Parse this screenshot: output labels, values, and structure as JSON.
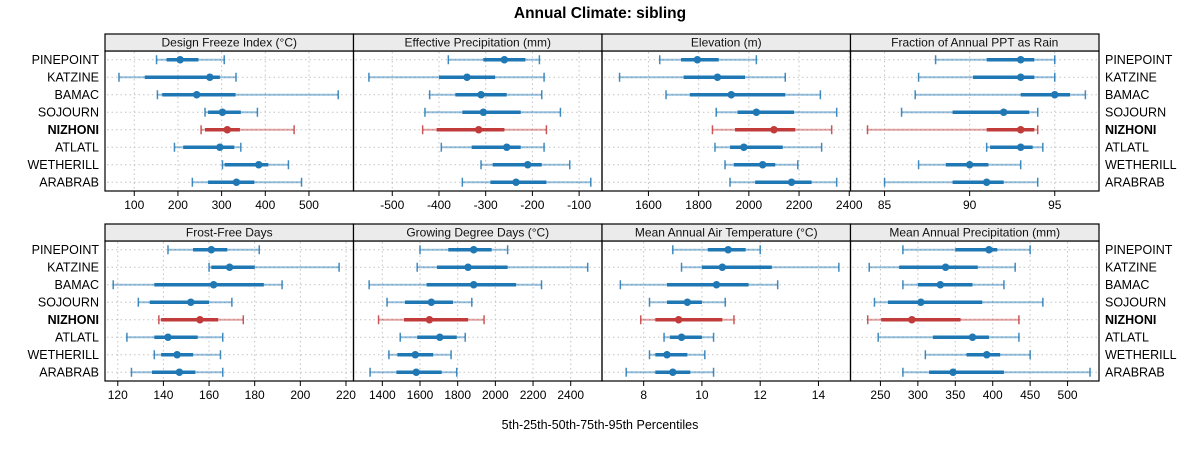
{
  "title": "Annual Climate: sibling",
  "caption": "5th-25th-50th-75th-95th Percentiles",
  "colors": {
    "series_blue": "#1f77b4",
    "highlight_red": "#c13b3b",
    "panel_header_bg": "#ebebeb",
    "panel_border": "#000000",
    "gridline": "#c3c3c3",
    "text": "#000000"
  },
  "chart_data": {
    "type": "scatter",
    "subtype": "horizontal_percentile_intervals",
    "title": "Annual Climate: sibling",
    "xlabel": "5th-25th-50th-75th-95th Percentiles",
    "grid": true,
    "percentiles": [
      5,
      25,
      50,
      75,
      95
    ],
    "sites": [
      "PINEPOINT",
      "KATZINE",
      "BAMAC",
      "SOJOURN",
      "NIZHONI",
      "ATLATL",
      "WETHERILL",
      "ARABRAB"
    ],
    "highlight_site": "NIZHONI",
    "panels": [
      {
        "title": "Design Freeze Index (°C)",
        "ticks": [
          100,
          200,
          300,
          400,
          500
        ],
        "xlim": [
          33,
          602
        ],
        "values": [
          [
            151,
            174,
            205,
            247,
            306
          ],
          [
            65,
            124,
            273,
            296,
            333
          ],
          [
            153,
            164,
            243,
            332,
            567
          ],
          [
            262,
            269,
            302,
            344,
            382
          ],
          [
            253,
            262,
            313,
            342,
            466
          ],
          [
            192,
            212,
            296,
            329,
            344
          ],
          [
            302,
            307,
            385,
            407,
            453
          ],
          [
            233,
            269,
            334,
            375,
            483
          ]
        ]
      },
      {
        "title": "Effective Precipitation (mm)",
        "ticks": [
          -500,
          -400,
          -300,
          -200,
          -100
        ],
        "xlim": [
          -583,
          -51
        ],
        "values": [
          [
            -380,
            -305,
            -260,
            -215,
            -185
          ],
          [
            -550,
            -400,
            -340,
            -280,
            -175
          ],
          [
            -420,
            -365,
            -310,
            -255,
            -180
          ],
          [
            -430,
            -350,
            -305,
            -225,
            -140
          ],
          [
            -435,
            -405,
            -315,
            -260,
            -170
          ],
          [
            -395,
            -330,
            -255,
            -225,
            -175
          ],
          [
            -310,
            -285,
            -210,
            -180,
            -120
          ],
          [
            -350,
            -290,
            -235,
            -170,
            -75
          ]
        ]
      },
      {
        "title": "Elevation (m)",
        "ticks": [
          1600,
          1800,
          2000,
          2200,
          2400
        ],
        "xlim": [
          1415,
          2405
        ],
        "values": [
          [
            1645,
            1730,
            1795,
            1880,
            2030
          ],
          [
            1485,
            1740,
            1875,
            1985,
            2145
          ],
          [
            1670,
            1765,
            1930,
            2145,
            2285
          ],
          [
            1870,
            1955,
            2030,
            2180,
            2350
          ],
          [
            1855,
            1945,
            2100,
            2185,
            2330
          ],
          [
            1865,
            1925,
            1980,
            2135,
            2290
          ],
          [
            1905,
            1940,
            2055,
            2105,
            2195
          ],
          [
            1925,
            2025,
            2170,
            2250,
            2350
          ]
        ]
      },
      {
        "title": "Fraction of Annual PPT as Rain",
        "ticks": [
          85,
          90,
          95
        ],
        "xlim": [
          83,
          97.6
        ],
        "values": [
          [
            88,
            91,
            93,
            93.8,
            95
          ],
          [
            87,
            90.2,
            93,
            93.8,
            95
          ],
          [
            86.8,
            93,
            95,
            95.9,
            96.8
          ],
          [
            86,
            89,
            92,
            93.5,
            94
          ],
          [
            84,
            91,
            93,
            93.8,
            94
          ],
          [
            91,
            91.2,
            93,
            93.7,
            94.3
          ],
          [
            87,
            88.6,
            90,
            91.1,
            93
          ],
          [
            85,
            89,
            91,
            92,
            94
          ]
        ]
      },
      {
        "title": "Frost-Free Days",
        "ticks": [
          120,
          140,
          160,
          180,
          200,
          220
        ],
        "xlim": [
          114.4,
          223.3
        ],
        "values": [
          [
            142,
            153,
            161,
            168,
            182
          ],
          [
            160,
            161,
            169,
            180,
            217
          ],
          [
            118,
            136,
            162,
            184,
            192
          ],
          [
            129,
            134,
            152,
            160,
            170
          ],
          [
            138,
            139,
            156,
            164,
            175
          ],
          [
            124,
            136,
            142,
            155,
            166
          ],
          [
            136,
            139,
            146,
            153,
            165
          ],
          [
            126,
            135,
            147,
            154,
            166
          ]
        ]
      },
      {
        "title": "Growing Degree Days (°C)",
        "ticks": [
          1400,
          1600,
          1800,
          2000,
          2200,
          2400
        ],
        "xlim": [
          1247,
          2566
        ],
        "values": [
          [
            1600,
            1750,
            1885,
            1980,
            2065
          ],
          [
            1585,
            1690,
            1855,
            2065,
            2490
          ],
          [
            1330,
            1635,
            1885,
            2110,
            2245
          ],
          [
            1425,
            1520,
            1660,
            1775,
            1875
          ],
          [
            1380,
            1515,
            1650,
            1855,
            1940
          ],
          [
            1495,
            1585,
            1705,
            1795,
            1840
          ],
          [
            1435,
            1480,
            1575,
            1670,
            1765
          ],
          [
            1335,
            1475,
            1580,
            1715,
            1795
          ]
        ]
      },
      {
        "title": "Mean Annual Air Temperature (°C)",
        "ticks": [
          8,
          10,
          12,
          14
        ],
        "xlim": [
          6.57,
          15.1
        ],
        "values": [
          [
            9.0,
            10.2,
            10.9,
            11.5,
            12.0
          ],
          [
            9.3,
            10.0,
            10.7,
            12.4,
            14.7
          ],
          [
            7.2,
            8.8,
            10.5,
            11.6,
            12.6
          ],
          [
            8.2,
            8.8,
            9.5,
            10.0,
            10.8
          ],
          [
            7.9,
            8.4,
            9.2,
            10.7,
            11.1
          ],
          [
            8.7,
            8.9,
            9.3,
            10.0,
            10.4
          ],
          [
            8.2,
            8.4,
            8.8,
            9.5,
            10.1
          ],
          [
            7.4,
            8.4,
            9.0,
            9.6,
            10.4
          ]
        ]
      },
      {
        "title": "Mean Annual Precipitation (mm)",
        "ticks": [
          250,
          300,
          350,
          400,
          450,
          500
        ],
        "xlim": [
          210,
          542
        ],
        "values": [
          [
            280,
            350,
            395,
            406,
            450
          ],
          [
            235,
            275,
            337,
            380,
            430
          ],
          [
            280,
            300,
            330,
            373,
            415
          ],
          [
            242,
            260,
            304,
            386,
            467
          ],
          [
            233,
            251,
            292,
            357,
            435
          ],
          [
            247,
            320,
            373,
            395,
            435
          ],
          [
            310,
            365,
            392,
            410,
            450
          ],
          [
            280,
            315,
            347,
            415,
            530
          ]
        ]
      }
    ]
  }
}
